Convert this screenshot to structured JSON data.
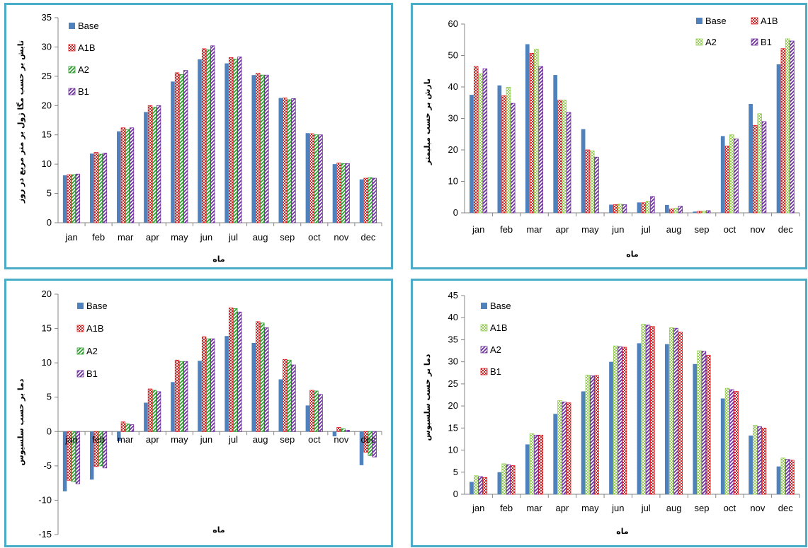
{
  "charts": [
    {
      "type": "bar",
      "title": "",
      "xlabel": "ماه",
      "ylabel": "تابش بر حسب مگا ژول بر متر مربع در روز",
      "categories": [
        "jan",
        "feb",
        "mar",
        "apr",
        "may",
        "jun",
        "jul",
        "aug",
        "sep",
        "oct",
        "nov",
        "dec"
      ],
      "ylim": [
        0,
        35
      ],
      "yticks": [
        0,
        5,
        10,
        15,
        20,
        25,
        30,
        35
      ],
      "legend_position": "top-left-inside",
      "legend_layout": "column",
      "series": [
        {
          "name": "Base",
          "color": "#4f81bd",
          "pattern": "solid",
          "values": [
            8.1,
            11.8,
            15.6,
            18.9,
            24.1,
            27.9,
            27.2,
            25.2,
            21.3,
            15.3,
            10.0,
            7.4
          ]
        },
        {
          "name": "A1B",
          "color": "#e31a1c",
          "pattern": "dots",
          "values": [
            8.2,
            12.0,
            16.2,
            20.0,
            25.6,
            29.7,
            28.2,
            25.5,
            21.3,
            15.2,
            10.2,
            7.6
          ]
        },
        {
          "name": "A2",
          "color": "#2ca02c",
          "pattern": "diag",
          "values": [
            8.2,
            11.7,
            15.9,
            19.7,
            25.3,
            29.5,
            27.9,
            25.2,
            21.0,
            15.0,
            10.1,
            7.7
          ]
        },
        {
          "name": "B1",
          "color": "#7030a0",
          "pattern": "diag",
          "values": [
            8.3,
            11.9,
            16.2,
            20.0,
            26.0,
            30.2,
            28.3,
            25.2,
            21.2,
            15.0,
            10.1,
            7.6
          ]
        }
      ]
    },
    {
      "type": "bar",
      "title": "",
      "xlabel": "ماه",
      "ylabel": "بارش بر حسب میلیمتر",
      "categories": [
        "jan",
        "feb",
        "mar",
        "apr",
        "may",
        "jun",
        "jul",
        "aug",
        "sep",
        "oct",
        "nov",
        "dec"
      ],
      "ylim": [
        0,
        60
      ],
      "yticks": [
        0,
        10,
        20,
        30,
        40,
        50,
        60
      ],
      "legend_position": "top-right-inside",
      "legend_layout": "grid-2x2",
      "series": [
        {
          "name": "Base",
          "color": "#4f81bd",
          "pattern": "solid",
          "values": [
            37.5,
            40.5,
            53.6,
            43.8,
            26.6,
            2.6,
            3.3,
            2.5,
            0.4,
            24.4,
            34.6,
            47.2
          ]
        },
        {
          "name": "A1B",
          "color": "#e31a1c",
          "pattern": "dots",
          "values": [
            46.5,
            37.2,
            50.7,
            35.8,
            20.0,
            2.6,
            3.2,
            1.2,
            0.5,
            21.2,
            27.8,
            52.2
          ]
        },
        {
          "name": "A2",
          "color": "#92d050",
          "pattern": "dots",
          "values": [
            44.2,
            39.9,
            52.0,
            35.8,
            19.7,
            2.8,
            3.7,
            1.5,
            0.6,
            24.8,
            31.5,
            55.3
          ]
        },
        {
          "name": "B1",
          "color": "#7030a0",
          "pattern": "diag",
          "values": [
            45.8,
            34.8,
            46.5,
            31.9,
            17.7,
            2.6,
            5.2,
            2.1,
            0.7,
            23.5,
            29.0,
            54.6
          ]
        }
      ]
    },
    {
      "type": "bar",
      "title": "",
      "xlabel": "ماه",
      "ylabel": "دما بر حسب سلسیوس",
      "categories": [
        "jan",
        "feb",
        "mar",
        "apr",
        "may",
        "jun",
        "jul",
        "aug",
        "sep",
        "oct",
        "nov",
        "dec"
      ],
      "ylim": [
        -15,
        20
      ],
      "yticks": [
        -15,
        -10,
        -5,
        0,
        5,
        10,
        15,
        20
      ],
      "legend_position": "top-left-inside",
      "legend_layout": "column",
      "series": [
        {
          "name": "Base",
          "color": "#4f81bd",
          "pattern": "solid",
          "values": [
            -8.7,
            -7.0,
            -1.4,
            4.2,
            7.2,
            10.3,
            13.9,
            12.9,
            7.6,
            3.8,
            -0.7,
            -4.9
          ]
        },
        {
          "name": "A1B",
          "color": "#e31a1c",
          "pattern": "dots",
          "values": [
            -7.1,
            -5.1,
            1.4,
            6.2,
            10.4,
            13.8,
            18.0,
            16.0,
            10.5,
            6.0,
            0.6,
            -3.0
          ]
        },
        {
          "name": "A2",
          "color": "#2ca02c",
          "pattern": "diag",
          "values": [
            -7.3,
            -5.0,
            1.1,
            6.0,
            10.2,
            13.5,
            17.9,
            15.8,
            10.4,
            5.9,
            0.4,
            -3.5
          ]
        },
        {
          "name": "B1",
          "color": "#7030a0",
          "pattern": "diag",
          "values": [
            -7.6,
            -5.3,
            1.0,
            5.8,
            10.2,
            13.5,
            17.4,
            15.1,
            9.7,
            5.4,
            0.2,
            -3.7
          ]
        }
      ]
    },
    {
      "type": "bar",
      "title": "",
      "xlabel": "ماه",
      "ylabel": "دما بر حسب سلسیوس",
      "categories": [
        "jan",
        "feb",
        "mar",
        "apr",
        "may",
        "jun",
        "jul",
        "aug",
        "sep",
        "oct",
        "nov",
        "dec"
      ],
      "ylim": [
        0,
        45
      ],
      "yticks": [
        0,
        5,
        10,
        15,
        20,
        25,
        30,
        35,
        40,
        45
      ],
      "legend_position": "top-left-inside",
      "legend_layout": "column",
      "series": [
        {
          "name": "Base",
          "color": "#4f81bd",
          "pattern": "solid",
          "values": [
            2.8,
            5.0,
            11.3,
            18.2,
            23.3,
            30.0,
            34.2,
            34.0,
            29.5,
            21.7,
            13.3,
            6.3
          ]
        },
        {
          "name": "A1B",
          "color": "#92d050",
          "pattern": "dots",
          "values": [
            4.2,
            6.9,
            13.7,
            21.2,
            27.0,
            33.6,
            38.5,
            37.7,
            32.5,
            24.0,
            15.6,
            8.2
          ]
        },
        {
          "name": "A2",
          "color": "#7030a0",
          "pattern": "diag",
          "values": [
            4.0,
            6.7,
            13.4,
            20.9,
            26.8,
            33.4,
            38.3,
            37.6,
            32.4,
            23.7,
            15.3,
            7.9
          ]
        },
        {
          "name": "B1",
          "color": "#e31a1c",
          "pattern": "dots",
          "values": [
            3.8,
            6.5,
            13.4,
            20.7,
            26.9,
            33.3,
            38.0,
            36.7,
            31.5,
            23.3,
            15.0,
            7.7
          ]
        }
      ]
    }
  ]
}
